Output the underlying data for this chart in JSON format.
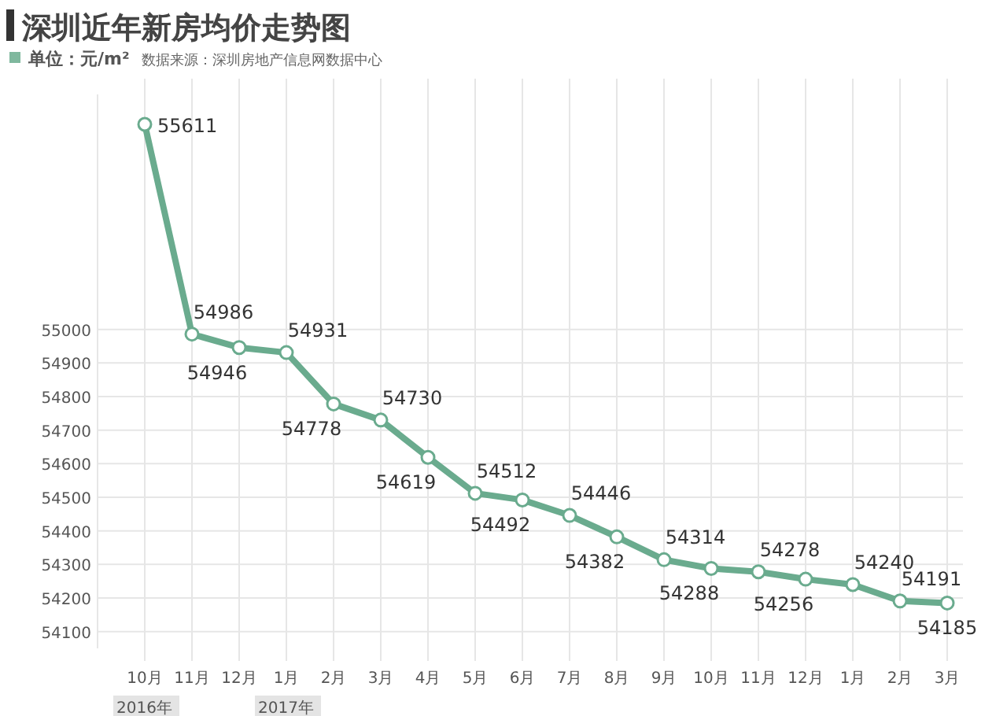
{
  "chart_data": {
    "type": "line",
    "title": "深圳近年新房均价走势图",
    "subtitle": "单位：元/m²",
    "annotations": [
      "数据来源：深圳房地产信息网数据中心",
      "2016年",
      "2017年"
    ],
    "categories": [
      "10月",
      "11月",
      "12月",
      "1月",
      "2月",
      "3月",
      "4月",
      "5月",
      "6月",
      "7月",
      "8月",
      "9月",
      "10月",
      "11月",
      "12月",
      "1月",
      "2月",
      "3月"
    ],
    "series": [
      {
        "color": "#6aab8e",
        "values": [
          55611,
          54986,
          54946,
          54931,
          54778,
          54730,
          54619,
          54512,
          54492,
          54446,
          54382,
          54314,
          54288,
          54278,
          54256,
          54240,
          54191,
          54185
        ]
      }
    ],
    "ylim": [
      54050,
      55700
    ],
    "yticks": [
      54100,
      54200,
      54300,
      54400,
      54500,
      54600,
      54700,
      54800,
      54900,
      55000
    ],
    "grid": true,
    "marker": "circle",
    "data_labels": true
  }
}
